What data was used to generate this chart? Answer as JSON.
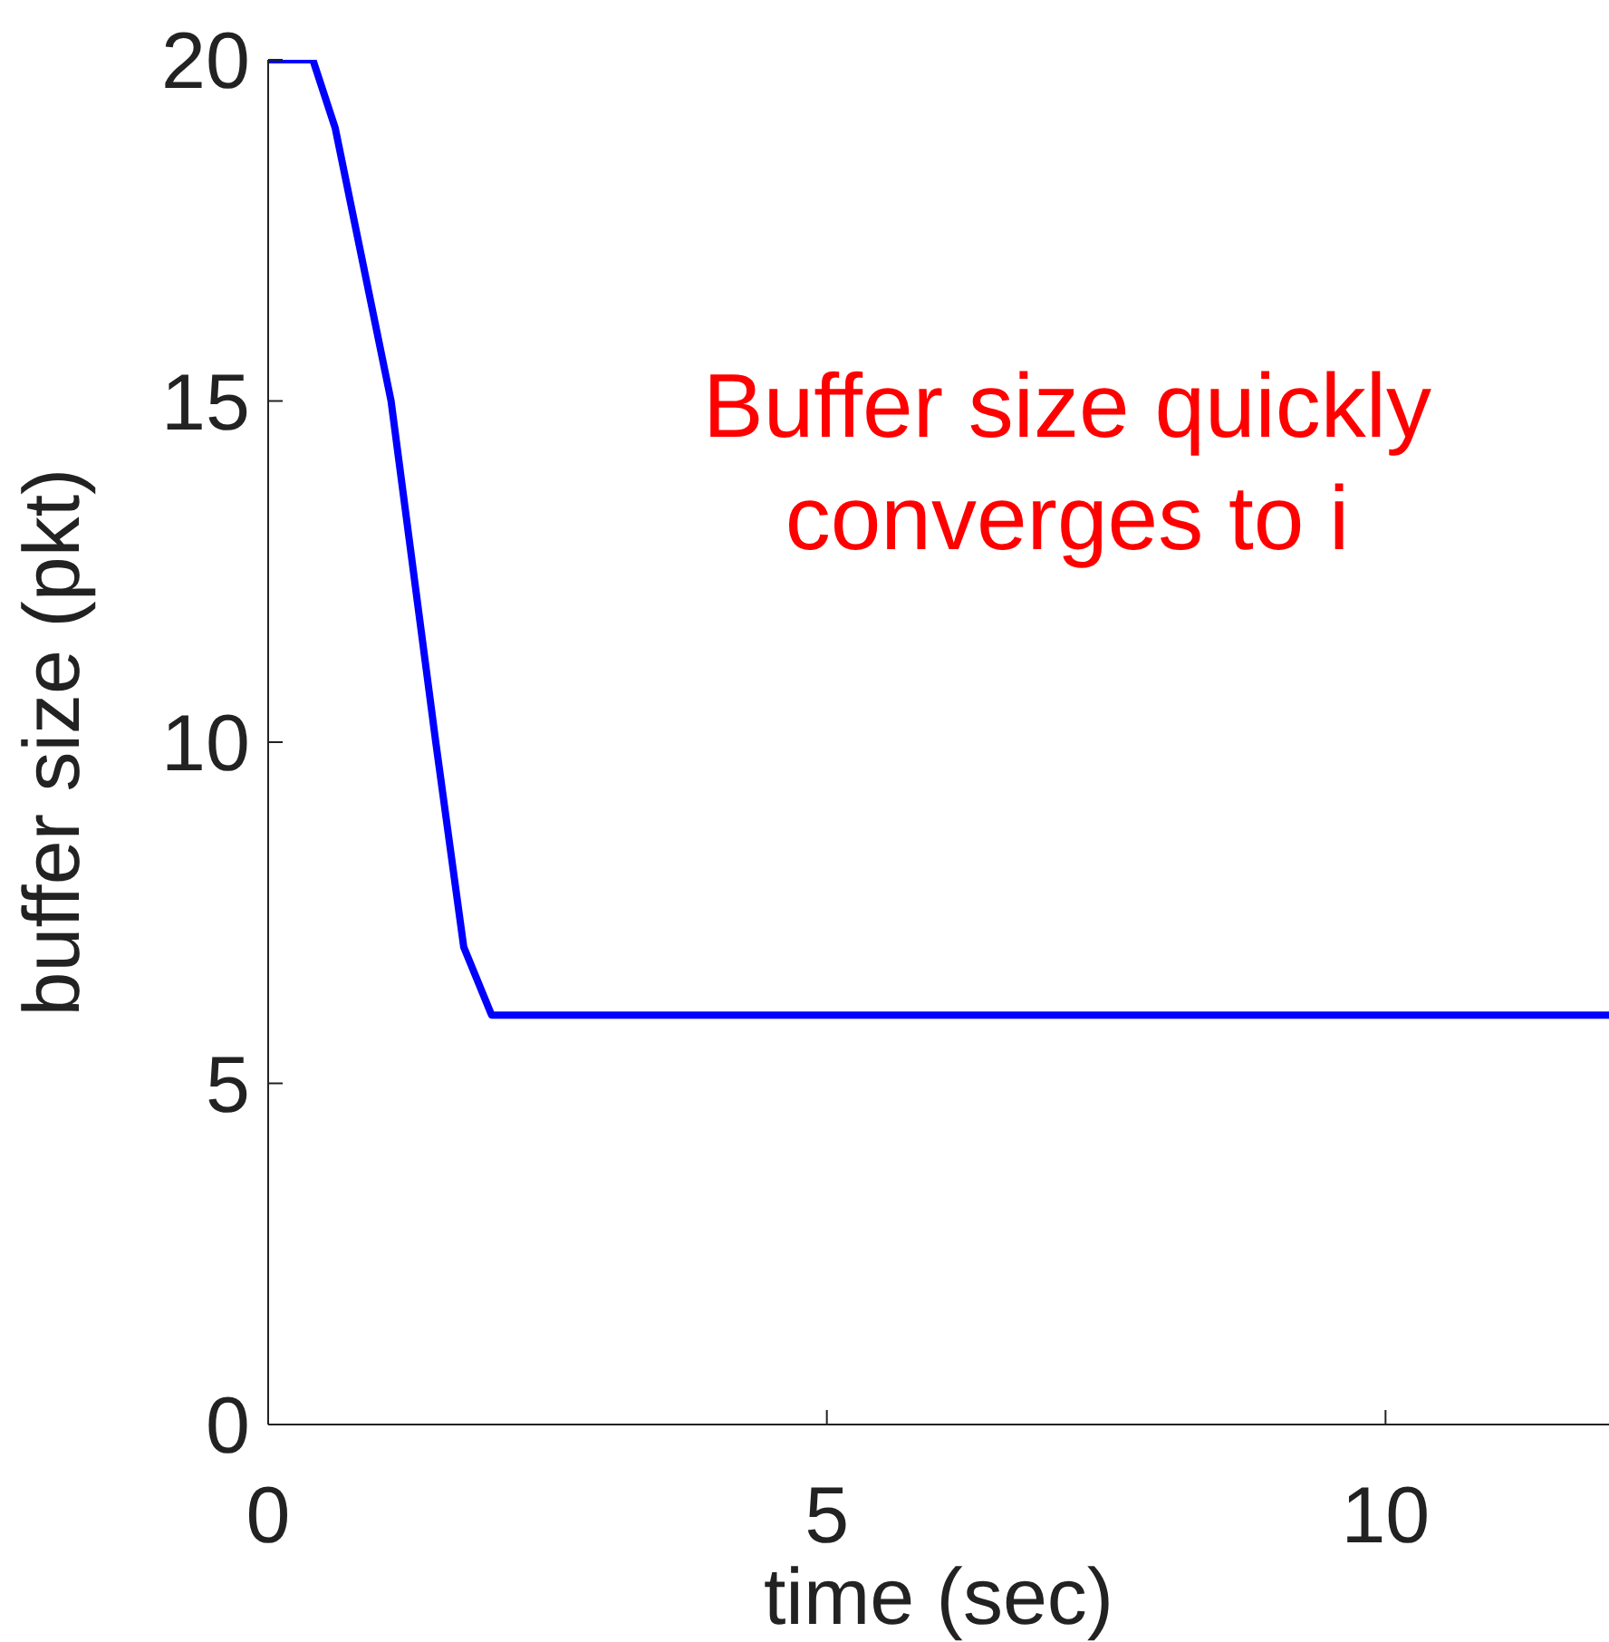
{
  "chart_data": {
    "type": "line",
    "xlabel": "time (sec)",
    "ylabel": "buffer size (pkt)",
    "annotations": [
      "Buffer size quickly",
      "converges to i"
    ],
    "x": [
      0,
      0.4,
      0.6,
      1.1,
      1.5,
      1.75,
      2,
      12
    ],
    "series": [
      {
        "color": "#0000ff",
        "values": [
          20,
          20,
          19,
          15,
          10,
          7,
          6,
          6
        ]
      }
    ],
    "xlim": [
      0,
      12
    ],
    "xticks": [
      0,
      5,
      10
    ],
    "ylim": [
      0,
      20
    ],
    "yticks": [
      0,
      5,
      10,
      15,
      20
    ],
    "grid": false,
    "legend": false,
    "marker": "none",
    "line_style": "solid"
  }
}
